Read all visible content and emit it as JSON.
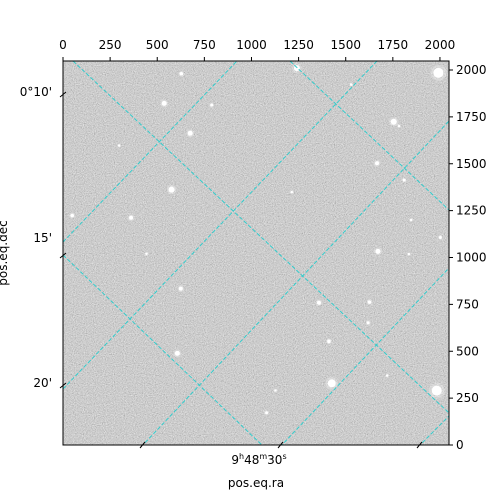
{
  "chart_data": {
    "type": "image",
    "pixel_axes": {
      "x_range": [
        0,
        2048
      ],
      "y_range": [
        0,
        2048
      ],
      "x_ticks": [
        0,
        250,
        500,
        750,
        1000,
        1250,
        1500,
        1750,
        2000
      ],
      "y_ticks": [
        0,
        250,
        500,
        750,
        1000,
        1250,
        1500,
        1750,
        2000
      ]
    },
    "world_axes": {
      "dec_ticks": [
        "0°10'",
        "15'",
        "20'"
      ],
      "ra_ticks": [
        "9h48m30s"
      ],
      "ra_tick_parts": {
        "h": "9",
        "hu": "h",
        "m": "48",
        "mu": "m",
        "s": "30",
        "su": "s"
      },
      "xlabel": "pos.eq.ra",
      "ylabel": "pos.eq.dec"
    },
    "grid": true,
    "grid_color": "#33cccc",
    "colormap": "gray",
    "stars": [
      {
        "x": 1992,
        "y": 1985,
        "r": 5
      },
      {
        "x": 1983,
        "y": 290,
        "r": 5
      },
      {
        "x": 1426,
        "y": 329,
        "r": 4
      },
      {
        "x": 1241,
        "y": 2010,
        "r": 3
      },
      {
        "x": 576,
        "y": 1362,
        "r": 3
      },
      {
        "x": 1755,
        "y": 1724,
        "r": 3
      },
      {
        "x": 675,
        "y": 1663,
        "r": 2.5
      },
      {
        "x": 537,
        "y": 1822,
        "r": 2.5
      },
      {
        "x": 1671,
        "y": 1033,
        "r": 2.5
      },
      {
        "x": 607,
        "y": 489,
        "r": 2.5
      },
      {
        "x": 361,
        "y": 1212,
        "r": 2
      },
      {
        "x": 1358,
        "y": 759,
        "r": 2
      },
      {
        "x": 1666,
        "y": 1503,
        "r": 2
      },
      {
        "x": 625,
        "y": 834,
        "r": 2
      },
      {
        "x": 1626,
        "y": 762,
        "r": 1.8
      },
      {
        "x": 1411,
        "y": 553,
        "r": 1.8
      },
      {
        "x": 628,
        "y": 1980,
        "r": 1.8
      },
      {
        "x": 789,
        "y": 1813,
        "r": 1.5
      },
      {
        "x": 1810,
        "y": 1413,
        "r": 1.5
      },
      {
        "x": 1619,
        "y": 652,
        "r": 1.5
      },
      {
        "x": 49,
        "y": 1224,
        "r": 1.8
      },
      {
        "x": 1080,
        "y": 172,
        "r": 1.5
      },
      {
        "x": 2002,
        "y": 1107,
        "r": 1.5
      },
      {
        "x": 1214,
        "y": 1349,
        "r": 1.2
      },
      {
        "x": 1783,
        "y": 1701,
        "r": 1.2
      },
      {
        "x": 1835,
        "y": 1018,
        "r": 1.2
      },
      {
        "x": 443,
        "y": 1020,
        "r": 1.2
      },
      {
        "x": 1127,
        "y": 291,
        "r": 1.2
      },
      {
        "x": 1720,
        "y": 370,
        "r": 1.2
      },
      {
        "x": 298,
        "y": 1597,
        "r": 1.2
      },
      {
        "x": 1529,
        "y": 1922,
        "r": 1.2
      },
      {
        "x": 1847,
        "y": 1200,
        "r": 1.2
      }
    ]
  }
}
